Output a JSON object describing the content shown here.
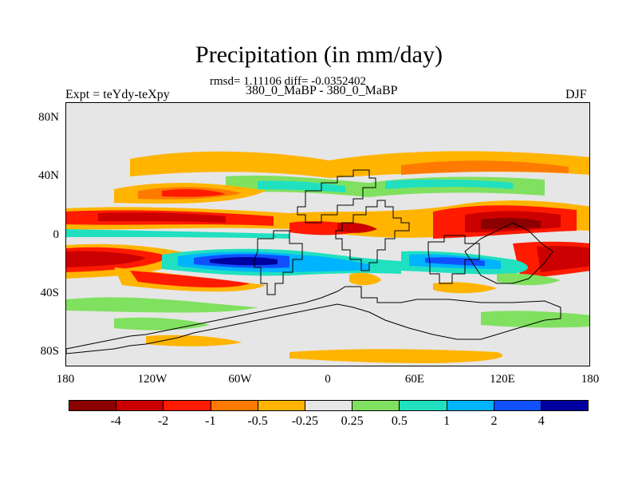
{
  "title": "Precipitation (in mm/day)",
  "stats": "rmsd= 1.11106 diff= -0.0352402",
  "expt_label": "Expt = teYdy-teXpy",
  "subtitle": "380_0_MaBP - 380_0_MaBP",
  "season": "DJF",
  "lat_ticks": [
    "80N",
    "40N",
    "0",
    "40S",
    "80S"
  ],
  "lon_ticks": [
    "180",
    "120W",
    "60W",
    "0",
    "60E",
    "120E",
    "180"
  ],
  "colorbar": {
    "colors": [
      "#8b0000",
      "#cc0000",
      "#ff1a00",
      "#ff7a00",
      "#ffb400",
      "#e6e6e6",
      "#80e060",
      "#20e0c0",
      "#00b4ff",
      "#1050ff",
      "#0000a0"
    ],
    "labels": [
      "-4",
      "-2",
      "-1",
      "-0.5",
      "-0.25",
      "0.25",
      "0.5",
      "1",
      "2",
      "4"
    ]
  },
  "map_data": {
    "projection": "cylindrical equidistant",
    "lon_range": [
      -180,
      180
    ],
    "lat_range": [
      -90,
      90
    ],
    "variable": "precipitation difference",
    "units": "mm/day"
  }
}
